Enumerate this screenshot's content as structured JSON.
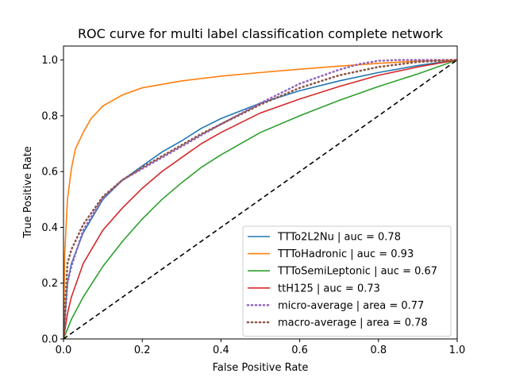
{
  "chart_data": {
    "type": "line",
    "title": "ROC curve for multi label classification complete network",
    "xlabel": "False Positive Rate",
    "ylabel": "True Positive Rate",
    "xlim": [
      0.0,
      1.0
    ],
    "ylim": [
      0.0,
      1.05
    ],
    "x_ticks": [
      "0.0",
      "0.2",
      "0.4",
      "0.6",
      "0.8",
      "1.0"
    ],
    "y_ticks": [
      "0.0",
      "0.2",
      "0.4",
      "0.6",
      "0.8",
      "1.0"
    ],
    "grid": false,
    "legend_position": "lower-right",
    "series": [
      {
        "name": "TTTo2L2Nu | auc = 0.78",
        "color": "#1f77b4",
        "style": "solid",
        "x": [
          0,
          0.01,
          0.02,
          0.05,
          0.1,
          0.15,
          0.2,
          0.25,
          0.3,
          0.35,
          0.4,
          0.5,
          0.6,
          0.7,
          0.8,
          0.9,
          1.0
        ],
        "y": [
          0,
          0.2,
          0.27,
          0.38,
          0.5,
          0.57,
          0.62,
          0.67,
          0.71,
          0.755,
          0.79,
          0.845,
          0.89,
          0.925,
          0.955,
          0.98,
          1.0
        ]
      },
      {
        "name": "TTToHadronic | auc = 0.93",
        "color": "#ff7f0e",
        "style": "solid",
        "x": [
          0,
          0.003,
          0.01,
          0.02,
          0.03,
          0.05,
          0.07,
          0.1,
          0.15,
          0.2,
          0.3,
          0.4,
          0.5,
          0.6,
          0.7,
          0.8,
          0.9,
          1.0
        ],
        "y": [
          0,
          0.3,
          0.5,
          0.61,
          0.68,
          0.74,
          0.79,
          0.835,
          0.875,
          0.9,
          0.925,
          0.942,
          0.955,
          0.967,
          0.978,
          0.988,
          0.996,
          1.0
        ]
      },
      {
        "name": "TTToSemiLeptonic | auc = 0.67",
        "color": "#2ca02c",
        "style": "solid",
        "x": [
          0,
          0.02,
          0.05,
          0.1,
          0.15,
          0.2,
          0.25,
          0.3,
          0.35,
          0.4,
          0.5,
          0.6,
          0.7,
          0.8,
          0.9,
          1.0
        ],
        "y": [
          0,
          0.07,
          0.15,
          0.26,
          0.35,
          0.43,
          0.5,
          0.56,
          0.615,
          0.66,
          0.74,
          0.8,
          0.855,
          0.905,
          0.95,
          1.0
        ]
      },
      {
        "name": "ttH125 | auc = 0.73",
        "color": "#d62728",
        "style": "solid",
        "x": [
          0,
          0.01,
          0.02,
          0.05,
          0.1,
          0.15,
          0.2,
          0.25,
          0.3,
          0.35,
          0.4,
          0.5,
          0.6,
          0.7,
          0.8,
          0.9,
          1.0
        ],
        "y": [
          0,
          0.09,
          0.15,
          0.27,
          0.39,
          0.47,
          0.54,
          0.6,
          0.65,
          0.7,
          0.74,
          0.81,
          0.86,
          0.905,
          0.945,
          0.975,
          1.0
        ]
      },
      {
        "name": "micro-average | area = 0.77",
        "color": "#9467bd",
        "style": "dotted",
        "x": [
          0,
          0.01,
          0.02,
          0.05,
          0.1,
          0.15,
          0.2,
          0.25,
          0.3,
          0.35,
          0.4,
          0.5,
          0.6,
          0.7,
          0.75,
          0.8,
          0.85,
          0.9,
          1.0
        ],
        "y": [
          0,
          0.2,
          0.26,
          0.39,
          0.505,
          0.57,
          0.61,
          0.65,
          0.69,
          0.73,
          0.77,
          0.845,
          0.915,
          0.965,
          0.985,
          0.997,
          1.0,
          1.0,
          1.0
        ]
      },
      {
        "name": "macro-average | area = 0.78",
        "color": "#8c564b",
        "style": "dotted",
        "x": [
          0,
          0.01,
          0.02,
          0.05,
          0.1,
          0.15,
          0.2,
          0.25,
          0.3,
          0.35,
          0.4,
          0.5,
          0.6,
          0.7,
          0.8,
          0.9,
          1.0
        ],
        "y": [
          0,
          0.27,
          0.32,
          0.41,
          0.51,
          0.57,
          0.615,
          0.655,
          0.695,
          0.735,
          0.77,
          0.84,
          0.9,
          0.945,
          0.975,
          0.993,
          1.0
        ]
      },
      {
        "name": "",
        "color": "#000000",
        "style": "dashed",
        "x": [
          0,
          1
        ],
        "y": [
          0,
          1
        ]
      }
    ]
  }
}
